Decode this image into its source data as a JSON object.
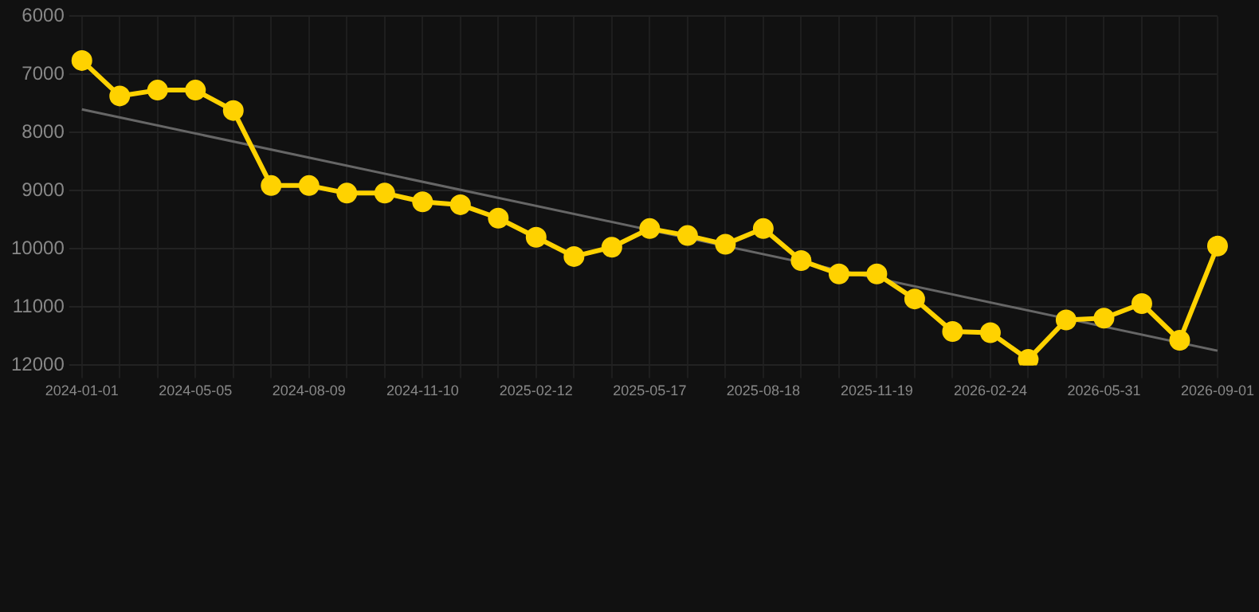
{
  "chart_data": {
    "type": "line",
    "categories": [
      "2024-01-01",
      null,
      null,
      "2024-05-05",
      null,
      null,
      "2024-08-09",
      null,
      null,
      "2024-11-10",
      null,
      null,
      "2025-02-12",
      null,
      null,
      "2025-05-17",
      null,
      null,
      "2025-08-18",
      null,
      null,
      "2025-11-19",
      null,
      null,
      "2026-02-24",
      null,
      null,
      "2026-05-31",
      null,
      null,
      "2026-09-01"
    ],
    "series": [
      {
        "color": "#ffd200",
        "marker": "circle",
        "values": [
          6760,
          7370,
          7270,
          7270,
          7620,
          8910,
          8910,
          9040,
          9040,
          9190,
          9240,
          9470,
          9800,
          10130,
          9970,
          9650,
          9770,
          9920,
          9650,
          10200,
          10430,
          10430,
          10860,
          11420,
          11440,
          11900,
          11220,
          11190,
          10940,
          11570,
          9950
        ]
      },
      {
        "type": "line",
        "color": "#666666",
        "marker": "none",
        "values": [
          7600,
          null,
          null,
          null,
          null,
          null,
          null,
          null,
          null,
          null,
          null,
          null,
          null,
          null,
          null,
          null,
          null,
          null,
          null,
          null,
          null,
          null,
          null,
          null,
          null,
          null,
          null,
          null,
          null,
          null,
          11750
        ]
      }
    ],
    "ylim": [
      12000,
      6000
    ],
    "yticks": [
      6000,
      7000,
      8000,
      9000,
      10000,
      11000,
      12000
    ],
    "grid": true,
    "legend": false,
    "line_style": "solid"
  }
}
